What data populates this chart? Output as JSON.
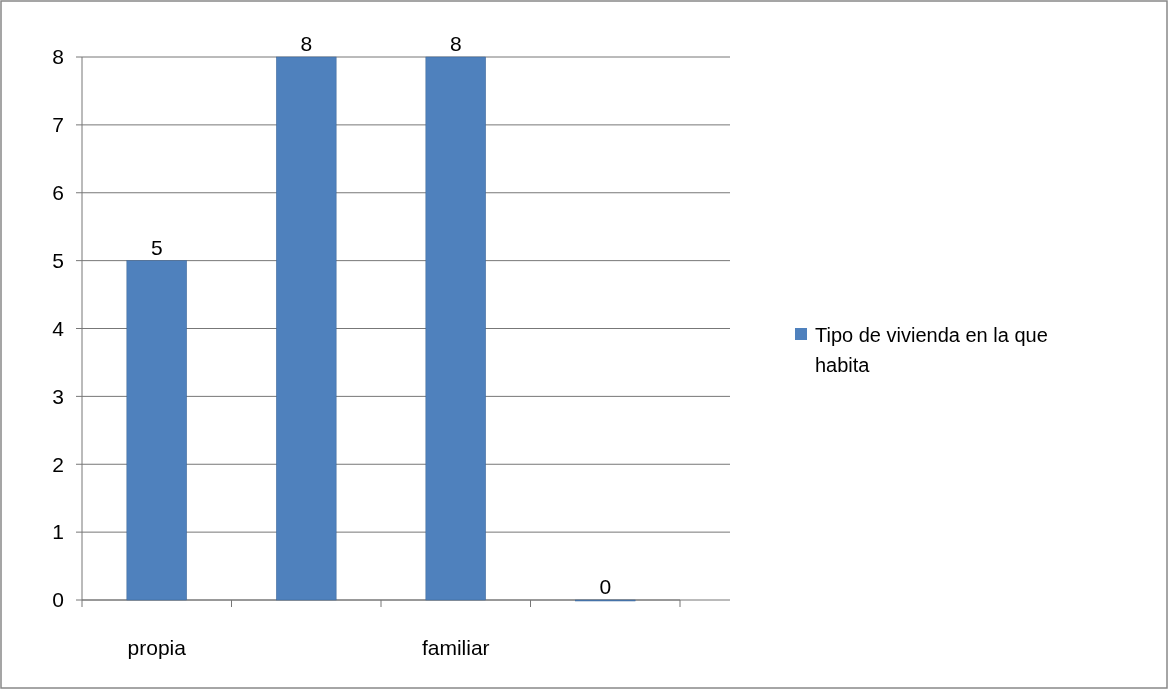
{
  "chart_data": {
    "type": "bar",
    "categories": [
      "propia",
      null,
      "familiar",
      null
    ],
    "series": [
      {
        "name": "Tipo de vivienda en la que habita",
        "color": "#4f81bd",
        "values": [
          5,
          8,
          8,
          0
        ]
      }
    ],
    "ylim": [
      0,
      8
    ],
    "yticks": [
      0,
      1,
      2,
      3,
      4,
      5,
      6,
      7,
      8
    ],
    "grid": "y",
    "legend": "right",
    "data_labels": true
  }
}
